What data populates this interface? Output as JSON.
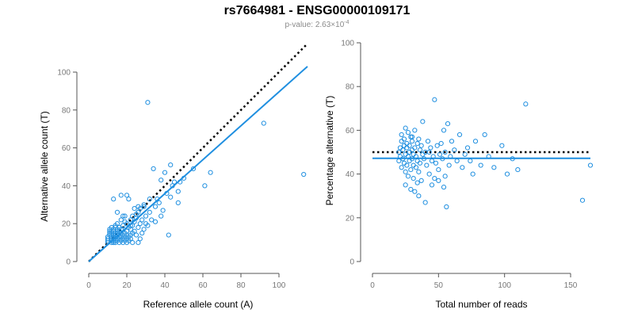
{
  "title": "rs7664981 - ENSG00000109171",
  "subtitle": {
    "prefix": "p-value: 2.63×10",
    "exponent": "-4"
  },
  "colors": {
    "points": "#1f8fe0",
    "fit": "#1f8fe0",
    "reference": "#000000",
    "axis": "#555555"
  },
  "chart_data": [
    {
      "type": "scatter",
      "xlabel": "Reference allele count (A)",
      "ylabel": "Alternative allele count (T)",
      "xlim": [
        0,
        115
      ],
      "ylim": [
        0,
        100
      ],
      "xticks": [
        "0",
        "20",
        "40",
        "60",
        "80",
        "100"
      ],
      "yticks": [
        "0",
        "20",
        "40",
        "60",
        "80",
        "100"
      ],
      "reference_line": {
        "style": "dotted",
        "from": [
          0,
          0
        ],
        "to": [
          115,
          115
        ]
      },
      "fit_line": {
        "style": "solid",
        "from": [
          0,
          0
        ],
        "to": [
          115,
          103
        ]
      },
      "points": [
        [
          10,
          10
        ],
        [
          10,
          11
        ],
        [
          10,
          12
        ],
        [
          10,
          13
        ],
        [
          11,
          14
        ],
        [
          11,
          15
        ],
        [
          11,
          16
        ],
        [
          11,
          17
        ],
        [
          12,
          10
        ],
        [
          12,
          11
        ],
        [
          12,
          12
        ],
        [
          12,
          13
        ],
        [
          12,
          15
        ],
        [
          12,
          16
        ],
        [
          12,
          18
        ],
        [
          13,
          10
        ],
        [
          13,
          11
        ],
        [
          13,
          12
        ],
        [
          13,
          13
        ],
        [
          13,
          14
        ],
        [
          13,
          16
        ],
        [
          13,
          17
        ],
        [
          14,
          10
        ],
        [
          14,
          11
        ],
        [
          14,
          13
        ],
        [
          14,
          14
        ],
        [
          14,
          15
        ],
        [
          14,
          18
        ],
        [
          14,
          19
        ],
        [
          15,
          11
        ],
        [
          15,
          12
        ],
        [
          15,
          14
        ],
        [
          15,
          15
        ],
        [
          15,
          17
        ],
        [
          15,
          20
        ],
        [
          16,
          10
        ],
        [
          16,
          12
        ],
        [
          16,
          13
        ],
        [
          16,
          16
        ],
        [
          16,
          18
        ],
        [
          17,
          11
        ],
        [
          17,
          13
        ],
        [
          17,
          15
        ],
        [
          17,
          17
        ],
        [
          18,
          10
        ],
        [
          18,
          12
        ],
        [
          18,
          14
        ],
        [
          18,
          19
        ],
        [
          18,
          24
        ],
        [
          19,
          11
        ],
        [
          19,
          13
        ],
        [
          19,
          15
        ],
        [
          19,
          21
        ],
        [
          20,
          10
        ],
        [
          20,
          12
        ],
        [
          20,
          14
        ],
        [
          20,
          16
        ],
        [
          20,
          20
        ],
        [
          21,
          11
        ],
        [
          21,
          13
        ],
        [
          21,
          18
        ],
        [
          22,
          12
        ],
        [
          22,
          14
        ],
        [
          22,
          17
        ],
        [
          22,
          22
        ],
        [
          23,
          15
        ],
        [
          23,
          19
        ],
        [
          23,
          24
        ],
        [
          24,
          16
        ],
        [
          24,
          21
        ],
        [
          25,
          14
        ],
        [
          25,
          25
        ],
        [
          26,
          10
        ],
        [
          26,
          18
        ],
        [
          26,
          26
        ],
        [
          27,
          20
        ],
        [
          27,
          28
        ],
        [
          28,
          15
        ],
        [
          28,
          22
        ],
        [
          29,
          17
        ],
        [
          29,
          29
        ],
        [
          30,
          24
        ],
        [
          31,
          19
        ],
        [
          32,
          26
        ],
        [
          33,
          22
        ],
        [
          35,
          29
        ],
        [
          36,
          33
        ],
        [
          37,
          31
        ],
        [
          39,
          27
        ],
        [
          41,
          36
        ],
        [
          43,
          34
        ],
        [
          44,
          40
        ],
        [
          47,
          37
        ],
        [
          48,
          42
        ],
        [
          50,
          44
        ],
        [
          55,
          49
        ],
        [
          13,
          33
        ],
        [
          15,
          26
        ],
        [
          17,
          35
        ],
        [
          20,
          35
        ],
        [
          21,
          33
        ],
        [
          24,
          28
        ],
        [
          26,
          29
        ],
        [
          29,
          30
        ],
        [
          32,
          33
        ],
        [
          34,
          49
        ],
        [
          38,
          43
        ],
        [
          40,
          47
        ],
        [
          43,
          51
        ],
        [
          45,
          42
        ],
        [
          61,
          40
        ],
        [
          64,
          47
        ],
        [
          92,
          73
        ],
        [
          113,
          46
        ],
        [
          31,
          84
        ],
        [
          13,
          14
        ],
        [
          15,
          16
        ],
        [
          18,
          17
        ],
        [
          22,
          19
        ],
        [
          25,
          23
        ],
        [
          30,
          20
        ],
        [
          35,
          21
        ],
        [
          38,
          24
        ],
        [
          42,
          14
        ],
        [
          47,
          31
        ],
        [
          27,
          12
        ],
        [
          23,
          10
        ],
        [
          17,
          22
        ],
        [
          19,
          24
        ]
      ]
    },
    {
      "type": "scatter",
      "xlabel": "Total number of reads",
      "ylabel": "Percentage alternative (T)",
      "xlim": [
        0,
        165
      ],
      "ylim": [
        0,
        100
      ],
      "xticks": [
        "0",
        "50",
        "100",
        "150"
      ],
      "yticks": [
        "0",
        "20",
        "40",
        "60",
        "80",
        "100"
      ],
      "reference_line": {
        "style": "dotted",
        "y": 50
      },
      "fit_line": {
        "style": "solid",
        "y": 47.2
      },
      "points": [
        [
          20,
          46
        ],
        [
          20,
          50
        ],
        [
          21,
          48
        ],
        [
          21,
          52
        ],
        [
          22,
          43
        ],
        [
          22,
          55
        ],
        [
          22,
          58
        ],
        [
          23,
          47
        ],
        [
          23,
          51
        ],
        [
          24,
          45
        ],
        [
          24,
          53
        ],
        [
          24,
          56
        ],
        [
          25,
          41
        ],
        [
          25,
          49
        ],
        [
          25,
          61
        ],
        [
          26,
          44
        ],
        [
          26,
          52
        ],
        [
          26,
          54
        ],
        [
          27,
          39
        ],
        [
          27,
          48
        ],
        [
          27,
          59
        ],
        [
          28,
          46
        ],
        [
          28,
          50
        ],
        [
          28,
          53
        ],
        [
          29,
          42
        ],
        [
          29,
          33
        ],
        [
          29,
          57
        ],
        [
          30,
          47
        ],
        [
          30,
          51
        ],
        [
          30,
          55
        ],
        [
          31,
          38
        ],
        [
          31,
          44
        ],
        [
          31,
          49
        ],
        [
          32,
          32
        ],
        [
          32,
          52
        ],
        [
          32,
          60
        ],
        [
          33,
          43
        ],
        [
          33,
          48
        ],
        [
          34,
          46
        ],
        [
          34,
          54
        ],
        [
          35,
          41
        ],
        [
          35,
          56
        ],
        [
          35,
          30
        ],
        [
          36,
          45
        ],
        [
          36,
          51
        ],
        [
          37,
          37
        ],
        [
          37,
          53
        ],
        [
          38,
          49
        ],
        [
          38,
          64
        ],
        [
          39,
          47
        ],
        [
          40,
          27
        ],
        [
          40,
          50
        ],
        [
          41,
          44
        ],
        [
          42,
          55
        ],
        [
          43,
          40
        ],
        [
          44,
          52
        ],
        [
          45,
          46
        ],
        [
          45,
          35
        ],
        [
          46,
          48
        ],
        [
          47,
          38
        ],
        [
          47,
          74
        ],
        [
          48,
          45
        ],
        [
          49,
          53
        ],
        [
          50,
          42
        ],
        [
          50,
          37
        ],
        [
          51,
          49
        ],
        [
          52,
          54
        ],
        [
          53,
          47
        ],
        [
          54,
          34
        ],
        [
          54,
          60
        ],
        [
          55,
          50
        ],
        [
          55,
          39
        ],
        [
          56,
          25
        ],
        [
          57,
          63
        ],
        [
          58,
          44
        ],
        [
          59,
          48
        ],
        [
          60,
          55
        ],
        [
          62,
          51
        ],
        [
          64,
          46
        ],
        [
          66,
          58
        ],
        [
          68,
          43
        ],
        [
          70,
          49
        ],
        [
          72,
          52
        ],
        [
          74,
          46
        ],
        [
          76,
          40
        ],
        [
          78,
          55
        ],
        [
          82,
          44
        ],
        [
          85,
          58
        ],
        [
          88,
          48
        ],
        [
          92,
          43
        ],
        [
          98,
          53
        ],
        [
          102,
          40
        ],
        [
          106,
          47
        ],
        [
          110,
          42
        ],
        [
          116,
          72
        ],
        [
          159,
          28
        ],
        [
          165,
          44
        ],
        [
          25,
          35
        ],
        [
          30,
          57
        ],
        [
          34,
          36
        ],
        [
          43,
          50
        ]
      ]
    }
  ]
}
